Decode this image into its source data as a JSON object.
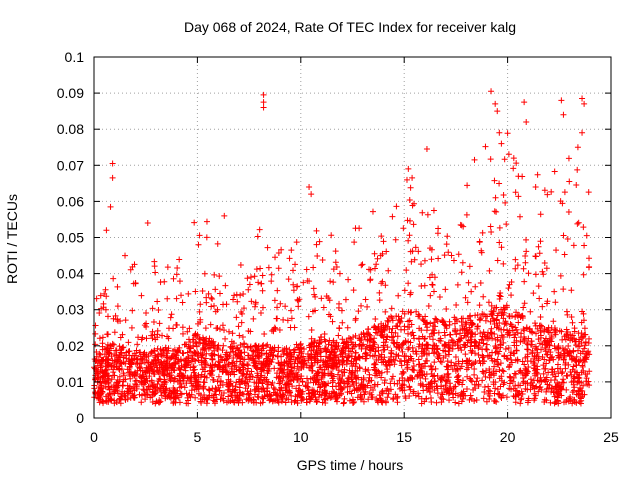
{
  "chart_data": {
    "type": "scatter",
    "title": "Day 068 of 2024, Rate Of TEC Index for receiver kalg",
    "xlabel": "GPS time / hours",
    "ylabel": "ROTI / TECUs",
    "xlim": [
      0,
      25
    ],
    "ylim": [
      0,
      0.1
    ],
    "x_ticks": [
      0,
      5,
      10,
      15,
      20,
      25
    ],
    "x_tick_labels": [
      "0",
      "5",
      "10",
      "15",
      "20",
      "25"
    ],
    "y_ticks": [
      0,
      0.01,
      0.02,
      0.03,
      0.04,
      0.05,
      0.06,
      0.07,
      0.08,
      0.09,
      0.1
    ],
    "y_tick_labels": [
      "0",
      "0.01",
      "0.02",
      "0.03",
      "0.04",
      "0.05",
      "0.06",
      "0.07",
      "0.08",
      "0.09",
      "0.1"
    ],
    "grid": true,
    "marker": "+",
    "series": [
      {
        "name": "ROTI",
        "color": "#ff0000",
        "marker": "+",
        "profile": {
          "hours": [
            0,
            1,
            2,
            3,
            4,
            5,
            6,
            7,
            8,
            9,
            10,
            11,
            12,
            13,
            14,
            15,
            16,
            17,
            18,
            19,
            20,
            21,
            22,
            23,
            24
          ],
          "median": [
            0.012,
            0.014,
            0.012,
            0.013,
            0.013,
            0.016,
            0.014,
            0.013,
            0.014,
            0.013,
            0.013,
            0.015,
            0.014,
            0.016,
            0.018,
            0.02,
            0.019,
            0.018,
            0.019,
            0.02,
            0.021,
            0.018,
            0.017,
            0.016,
            0.016
          ],
          "upper": [
            0.03,
            0.034,
            0.032,
            0.033,
            0.035,
            0.045,
            0.04,
            0.034,
            0.042,
            0.036,
            0.04,
            0.042,
            0.04,
            0.046,
            0.055,
            0.058,
            0.05,
            0.048,
            0.055,
            0.065,
            0.07,
            0.055,
            0.06,
            0.06,
            0.052
          ]
        },
        "outliers": [
          {
            "x": 0.9,
            "y": 0.0705
          },
          {
            "x": 0.9,
            "y": 0.0665
          },
          {
            "x": 0.8,
            "y": 0.0585
          },
          {
            "x": 0.6,
            "y": 0.052
          },
          {
            "x": 8.2,
            "y": 0.0895
          },
          {
            "x": 8.2,
            "y": 0.0875
          },
          {
            "x": 8.2,
            "y": 0.086
          },
          {
            "x": 10.4,
            "y": 0.064
          },
          {
            "x": 10.5,
            "y": 0.062
          },
          {
            "x": 2.6,
            "y": 0.054
          },
          {
            "x": 6.3,
            "y": 0.056
          },
          {
            "x": 19.2,
            "y": 0.0905
          },
          {
            "x": 19.4,
            "y": 0.087
          },
          {
            "x": 19.5,
            "y": 0.085
          },
          {
            "x": 19.6,
            "y": 0.079
          },
          {
            "x": 19.7,
            "y": 0.076
          },
          {
            "x": 20.8,
            "y": 0.0875
          },
          {
            "x": 20.9,
            "y": 0.082
          },
          {
            "x": 22.6,
            "y": 0.088
          },
          {
            "x": 22.7,
            "y": 0.084
          },
          {
            "x": 23.6,
            "y": 0.0885
          },
          {
            "x": 23.7,
            "y": 0.087
          },
          {
            "x": 23.6,
            "y": 0.079
          },
          {
            "x": 16.1,
            "y": 0.0745
          },
          {
            "x": 15.2,
            "y": 0.069
          },
          {
            "x": 18.4,
            "y": 0.0715
          },
          {
            "x": 20.3,
            "y": 0.072
          },
          {
            "x": 23.4,
            "y": 0.075
          }
        ]
      }
    ]
  }
}
